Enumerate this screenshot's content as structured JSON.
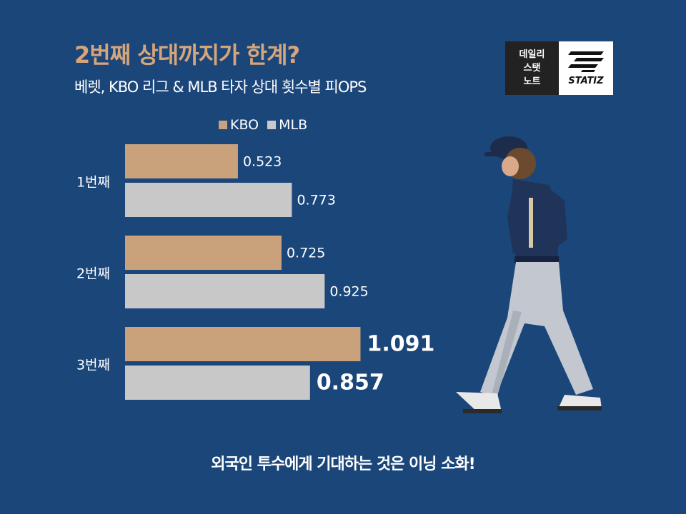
{
  "header": {
    "title": "2번째 상대까지가 한계?",
    "subtitle": "베렛, KBO 리그 & MLB 타자 상대 횟수별 피OPS"
  },
  "logo": {
    "text_lines": [
      "데일리",
      "스탯",
      "노트"
    ],
    "brand": "STATIZ"
  },
  "footer": {
    "text": "외국인 투수에게 기대하는 것은 이닝 소화!"
  },
  "colors": {
    "background": "#1b467a",
    "title": "#d6a57a",
    "kbo": "#c9a27c",
    "mlb": "#c8c8c8"
  },
  "chart_data": {
    "type": "bar",
    "orientation": "horizontal",
    "categories": [
      "1번째",
      "2번째",
      "3번째"
    ],
    "series": [
      {
        "name": "KBO",
        "values": [
          0.523,
          0.725,
          1.091
        ]
      },
      {
        "name": "MLB",
        "values": [
          0.773,
          0.925,
          0.857
        ]
      }
    ],
    "value_labels": [
      [
        "0.523",
        "0.725",
        "1.091"
      ],
      [
        "0.773",
        "0.925",
        "0.857"
      ]
    ],
    "emphasized_category": "3번째",
    "xlim": [
      0,
      1.1
    ],
    "legend_position": "top",
    "grid": false
  }
}
